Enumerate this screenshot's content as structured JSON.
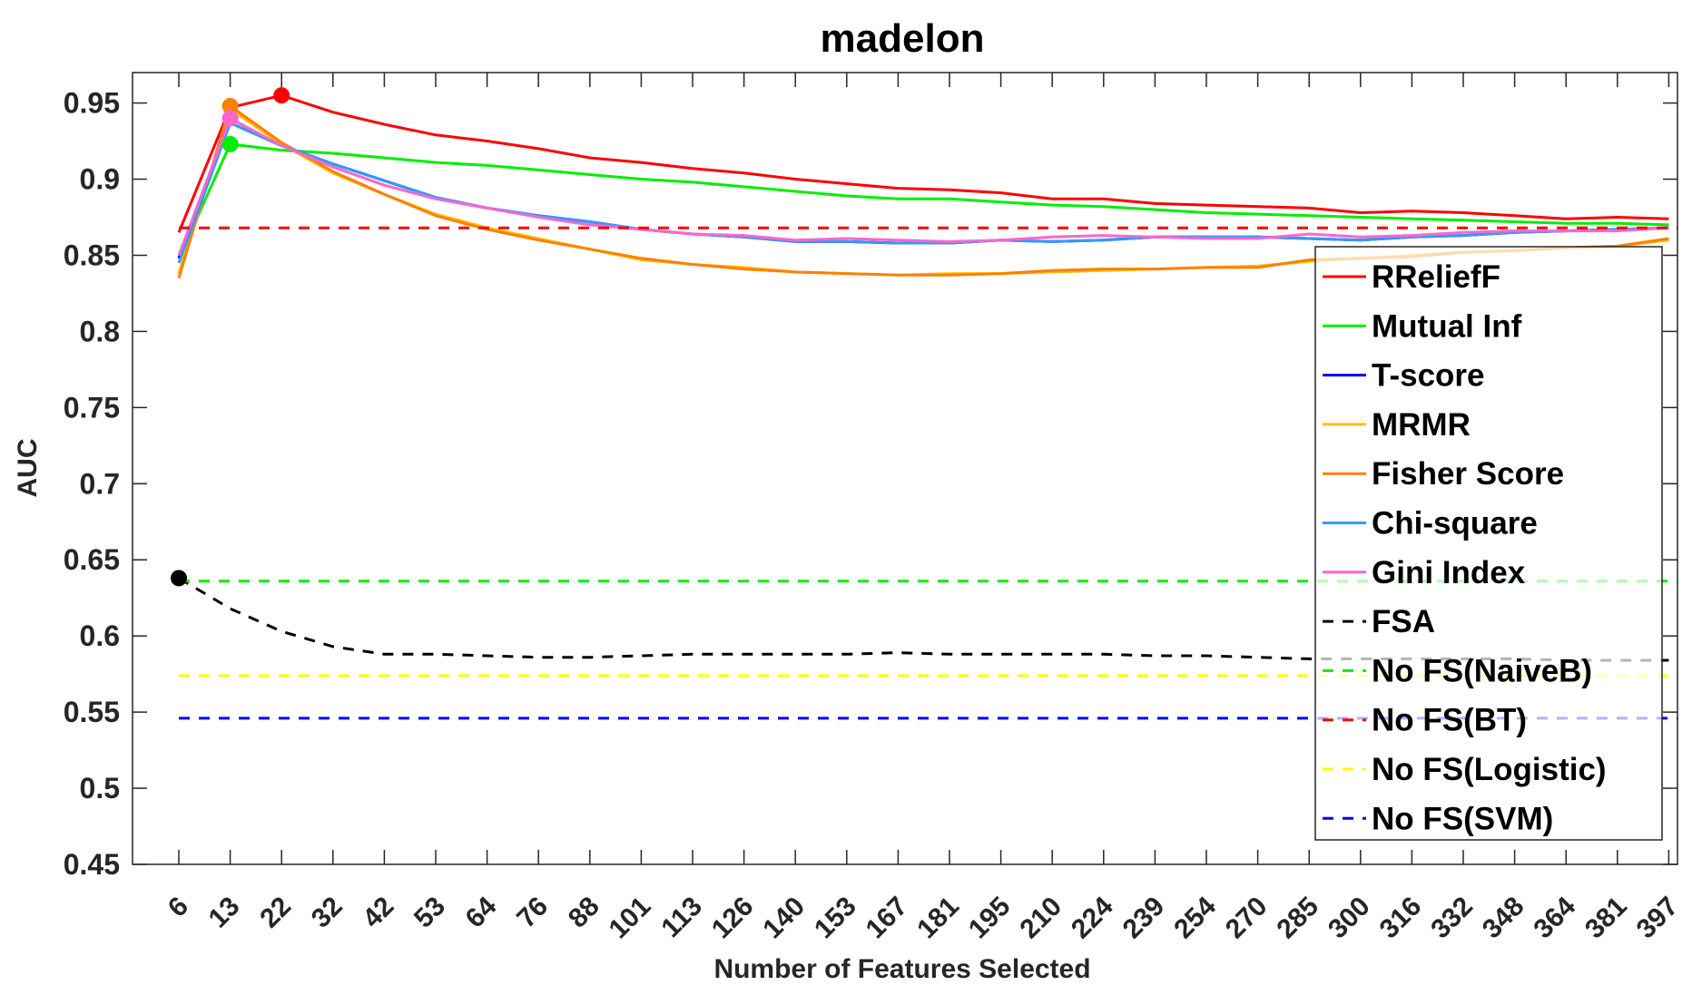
{
  "chart_data": {
    "type": "line",
    "title": "madelon",
    "xlabel": "Number of Features Selected",
    "ylabel": "AUC",
    "ylim": [
      0.45,
      0.97
    ],
    "yticks": [
      "0.45",
      "0.5",
      "0.55",
      "0.6",
      "0.65",
      "0.7",
      "0.75",
      "0.8",
      "0.85",
      "0.9",
      "0.95"
    ],
    "x": [
      "6",
      "13",
      "22",
      "32",
      "42",
      "53",
      "64",
      "76",
      "88",
      "101",
      "113",
      "126",
      "140",
      "153",
      "167",
      "181",
      "195",
      "210",
      "224",
      "239",
      "254",
      "270",
      "285",
      "300",
      "316",
      "332",
      "348",
      "364",
      "381",
      "397"
    ],
    "grid": false,
    "legend_position": "right, inside plot area",
    "series": [
      {
        "name": "RReliefF",
        "color": "#ff0000",
        "style": "solid",
        "marker": 2,
        "values": [
          0.865,
          0.947,
          0.955,
          0.944,
          0.936,
          0.929,
          0.925,
          0.92,
          0.914,
          0.911,
          0.907,
          0.904,
          0.9,
          0.897,
          0.894,
          0.893,
          0.891,
          0.887,
          0.887,
          0.884,
          0.883,
          0.882,
          0.881,
          0.878,
          0.879,
          0.878,
          0.876,
          0.874,
          0.875,
          0.874
        ]
      },
      {
        "name": "Mutual Inf",
        "color": "#00ee00",
        "style": "solid",
        "marker": 1,
        "values": [
          0.848,
          0.923,
          0.919,
          0.917,
          0.914,
          0.911,
          0.909,
          0.906,
          0.903,
          0.9,
          0.898,
          0.895,
          0.892,
          0.889,
          0.887,
          0.887,
          0.885,
          0.883,
          0.882,
          0.88,
          0.878,
          0.877,
          0.876,
          0.875,
          0.874,
          0.873,
          0.872,
          0.871,
          0.871,
          0.87
        ]
      },
      {
        "name": "T-score",
        "color": "#0000ee",
        "style": "solid",
        "marker": null,
        "values": [
          0.848,
          0.937,
          0.922,
          0.91,
          0.899,
          0.888,
          0.881,
          0.876,
          0.872,
          0.867,
          0.864,
          0.862,
          0.859,
          0.859,
          0.858,
          0.858,
          0.86,
          0.859,
          0.86,
          0.862,
          0.862,
          0.862,
          0.861,
          0.86,
          0.862,
          0.863,
          0.865,
          0.866,
          0.867,
          0.868
        ]
      },
      {
        "name": "MRMR",
        "color": "#ffc000",
        "style": "solid",
        "marker": null,
        "values": [
          0.838,
          0.946,
          0.923,
          0.904,
          0.89,
          0.877,
          0.868,
          0.861,
          0.854,
          0.847,
          0.844,
          0.842,
          0.839,
          0.838,
          0.837,
          0.838,
          0.838,
          0.839,
          0.84,
          0.841,
          0.842,
          0.843,
          0.846,
          0.848,
          0.85,
          0.852,
          0.853,
          0.855,
          0.856,
          0.86
        ]
      },
      {
        "name": "Fisher Score",
        "color": "#ff8000",
        "style": "solid",
        "marker": 1,
        "values": [
          0.835,
          0.948,
          0.924,
          0.905,
          0.89,
          0.876,
          0.867,
          0.86,
          0.854,
          0.848,
          0.844,
          0.841,
          0.839,
          0.838,
          0.837,
          0.837,
          0.838,
          0.84,
          0.841,
          0.841,
          0.842,
          0.842,
          0.847,
          0.848,
          0.849,
          0.852,
          0.853,
          0.855,
          0.856,
          0.861
        ]
      },
      {
        "name": "Chi-square",
        "color": "#3399ff",
        "style": "solid",
        "marker": null,
        "values": [
          0.845,
          0.937,
          0.922,
          0.91,
          0.899,
          0.888,
          0.881,
          0.876,
          0.872,
          0.867,
          0.864,
          0.862,
          0.859,
          0.859,
          0.858,
          0.858,
          0.86,
          0.859,
          0.86,
          0.862,
          0.862,
          0.862,
          0.861,
          0.86,
          0.862,
          0.863,
          0.865,
          0.866,
          0.867,
          0.868
        ]
      },
      {
        "name": "Gini Index",
        "color": "#ff66cc",
        "style": "solid",
        "marker": 1,
        "values": [
          0.85,
          0.94,
          0.922,
          0.908,
          0.896,
          0.887,
          0.881,
          0.875,
          0.87,
          0.867,
          0.864,
          0.863,
          0.86,
          0.861,
          0.86,
          0.859,
          0.86,
          0.862,
          0.863,
          0.862,
          0.861,
          0.861,
          0.864,
          0.862,
          0.863,
          0.865,
          0.866,
          0.866,
          0.866,
          0.868
        ]
      },
      {
        "name": "FSA",
        "color": "#000000",
        "style": "dashed",
        "marker": 0,
        "values": [
          0.638,
          0.618,
          0.603,
          0.593,
          0.588,
          0.588,
          0.587,
          0.586,
          0.586,
          0.587,
          0.588,
          0.588,
          0.588,
          0.588,
          0.589,
          0.588,
          0.588,
          0.588,
          0.588,
          0.587,
          0.587,
          0.586,
          0.585,
          0.585,
          0.585,
          0.585,
          0.585,
          0.584,
          0.584,
          0.584
        ]
      },
      {
        "name": "No FS(NaiveB)",
        "color": "#00ee00",
        "style": "dashed",
        "marker": null,
        "constant": 0.636
      },
      {
        "name": "No FS(BT)",
        "color": "#ff0000",
        "style": "dashed",
        "marker": null,
        "constant": 0.868
      },
      {
        "name": "No FS(Logistic)",
        "color": "#ffff00",
        "style": "dashed",
        "marker": null,
        "constant": 0.574
      },
      {
        "name": "No FS(SVM)",
        "color": "#0000ee",
        "style": "dashed",
        "marker": null,
        "constant": 0.546
      }
    ]
  }
}
